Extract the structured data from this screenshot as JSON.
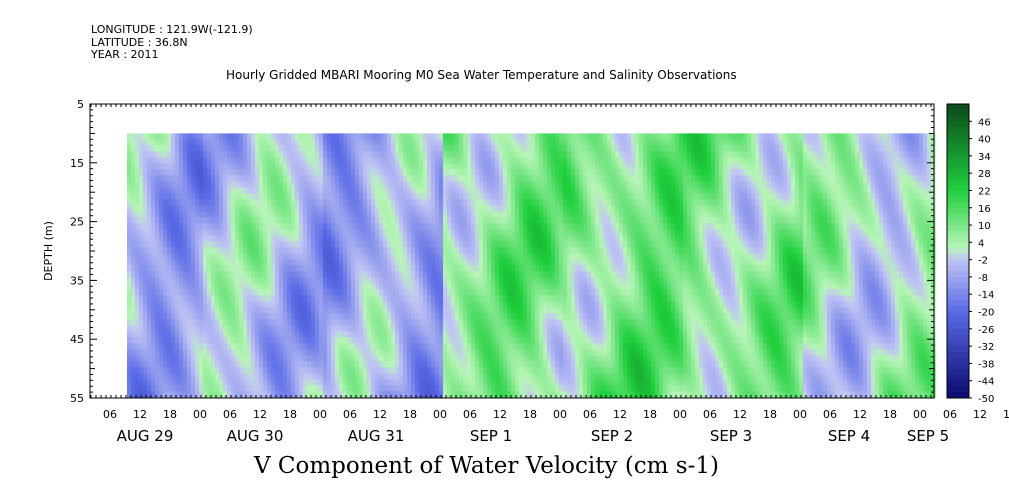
{
  "meta": {
    "longitude": "LONGITUDE : 121.9W(-121.9)",
    "latitude": "LATITUDE : 36.8N",
    "year": "YEAR : 2011"
  },
  "chart_data": {
    "type": "heatmap",
    "title": "Hourly Gridded MBARI Mooring M0 Sea Water Temperature and Salinity Observations",
    "variable_title": "V Component of Water Velocity (cm s-1)",
    "ylabel": "DEPTH (m)",
    "ylim": [
      5,
      55
    ],
    "y_inverted": true,
    "y_ticks": [
      "5",
      "15",
      "25",
      "35",
      "45",
      "55"
    ],
    "data_depth_range": [
      10,
      55
    ],
    "x_hour_ticks": [
      "06",
      "12",
      "18",
      "00",
      "06",
      "12",
      "18",
      "00",
      "06",
      "12",
      "18",
      "00",
      "06",
      "12",
      "18",
      "00",
      "06",
      "12",
      "18",
      "00",
      "06",
      "12",
      "18",
      "00",
      "06",
      "12",
      "18",
      "00",
      "06",
      "12",
      "18",
      "00"
    ],
    "x_date_labels": [
      "AUG 29",
      "AUG 30",
      "AUG 31",
      "SEP  1",
      "SEP  2",
      "SEP  3",
      "SEP  4",
      "SEP  5"
    ],
    "colorbar": {
      "labels": [
        "46",
        "40",
        "34",
        "28",
        "22",
        "16",
        "10",
        "4",
        "-2",
        "-8",
        "-14",
        "-20",
        "-26",
        "-32",
        "-38",
        "-44",
        "-50"
      ],
      "range": [
        -50,
        52
      ],
      "step": 2,
      "colors": {
        "dark_green": "#0b4a1c",
        "green": "#1ecf3c",
        "light_green": "#b8f5b8",
        "light_blue": "#c0c4f4",
        "blue": "#5a6ae6",
        "dark_blue": "#0a0a6e"
      }
    },
    "series_summary": {
      "dominant_range": [
        -20,
        20
      ],
      "description_values": [
        {
          "day": "AUG 29",
          "mean": -6
        },
        {
          "day": "AUG 30",
          "mean": -4
        },
        {
          "day": "AUG 31",
          "mean": -8
        },
        {
          "day": "SEP  1",
          "mean": 8
        },
        {
          "day": "SEP  2",
          "mean": 10
        },
        {
          "day": "SEP  3",
          "mean": 8
        },
        {
          "day": "SEP  4",
          "mean": 2
        }
      ]
    }
  }
}
